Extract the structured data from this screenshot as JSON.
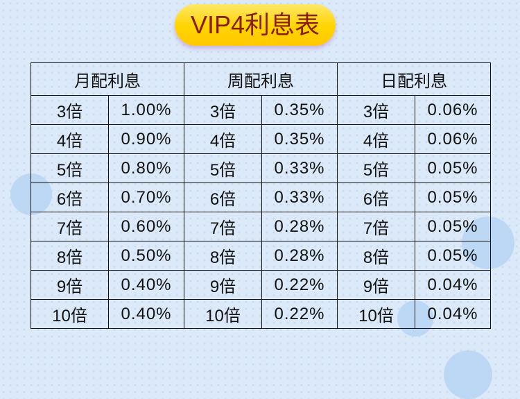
{
  "title": "VIP4利息表",
  "headers": [
    "月配利息",
    "周配利息",
    "日配利息"
  ],
  "rows": [
    {
      "m": [
        "3倍",
        "1.00%"
      ],
      "w": [
        "3倍",
        "0.35%"
      ],
      "d": [
        "3倍",
        "0.06%"
      ]
    },
    {
      "m": [
        "4倍",
        "0.90%"
      ],
      "w": [
        "4倍",
        "0.35%"
      ],
      "d": [
        "4倍",
        "0.06%"
      ]
    },
    {
      "m": [
        "5倍",
        "0.80%"
      ],
      "w": [
        "5倍",
        "0.33%"
      ],
      "d": [
        "5倍",
        "0.05%"
      ]
    },
    {
      "m": [
        "6倍",
        "0.70%"
      ],
      "w": [
        "6倍",
        "0.33%"
      ],
      "d": [
        "6倍",
        "0.05%"
      ]
    },
    {
      "m": [
        "7倍",
        "0.60%"
      ],
      "w": [
        "7倍",
        "0.28%"
      ],
      "d": [
        "7倍",
        "0.05%"
      ]
    },
    {
      "m": [
        "8倍",
        "0.50%"
      ],
      "w": [
        "8倍",
        "0.28%"
      ],
      "d": [
        "8倍",
        "0.05%"
      ]
    },
    {
      "m": [
        "9倍",
        "0.40%"
      ],
      "w": [
        "9倍",
        "0.22%"
      ],
      "d": [
        "9倍",
        "0.04%"
      ]
    },
    {
      "m": [
        "10倍",
        "0.40%"
      ],
      "w": [
        "10倍",
        "0.22%"
      ],
      "d": [
        "10倍",
        "0.04%"
      ]
    }
  ]
}
